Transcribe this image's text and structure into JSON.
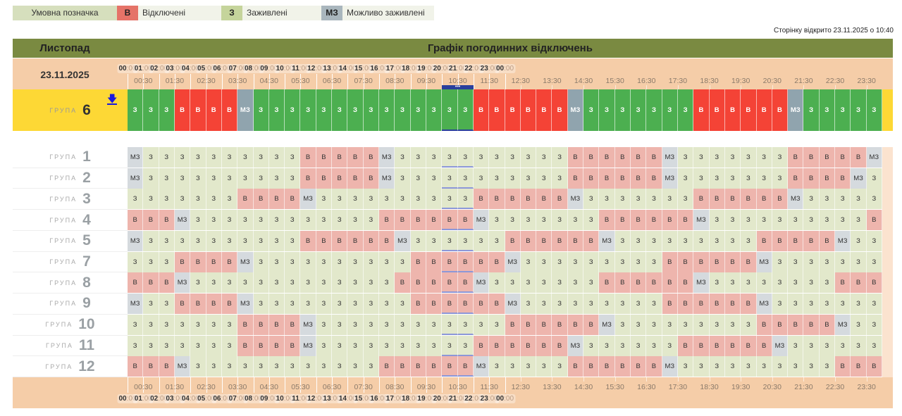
{
  "legend": {
    "title": "Умовна позначка",
    "items": [
      {
        "code": "В",
        "label": "Відключені",
        "color": "#e57368"
      },
      {
        "code": "З",
        "label": "Заживлені",
        "color": "#c5d49b"
      },
      {
        "code": "МЗ",
        "label": "Можливо заживлені",
        "color": "#a9b6bd"
      }
    ]
  },
  "opened_text": "Сторінку відкрито 23.11.2025 о 10:40",
  "header": {
    "month": "Листопад",
    "title": "Графік погодинних відключень",
    "date": "23.11.2025"
  },
  "hours": [
    "00",
    "01",
    "02",
    "03",
    "04",
    "05",
    "06",
    "07",
    "08",
    "09",
    "10",
    "11",
    "12",
    "13",
    "14",
    "15",
    "16",
    "17",
    "18",
    "19",
    "20",
    "21",
    "22",
    "23",
    "00"
  ],
  "minute_suffix": ":00",
  "half_hours": [
    "00:30",
    "01:30",
    "02:30",
    "03:30",
    "04:30",
    "05:30",
    "06:30",
    "07:30",
    "08:30",
    "09:30",
    "10:30",
    "11:30",
    "12:30",
    "13:30",
    "14:30",
    "15:30",
    "16:30",
    "17:30",
    "18:30",
    "19:30",
    "20:30",
    "21:30",
    "22:30",
    "23:30"
  ],
  "current_marker": "•••",
  "current_slot_hour": "10",
  "group_word": "ГРУПА",
  "colors": {
    "active": {
      "З": "#4caf50",
      "В": "#f44336",
      "МЗ": "#90a4ae"
    },
    "inactive": {
      "З": "#e2e8cb",
      "В": "#eeb5ad",
      "МЗ": "#d5dade"
    },
    "accent": "#fdd835",
    "marker": "#2a3f9c"
  },
  "active_group": {
    "number": "6",
    "download_icon": "download-icon",
    "cells": [
      "З",
      "З",
      "З",
      "В",
      "В",
      "В",
      "В",
      "МЗ",
      "З",
      "З",
      "З",
      "З",
      "З",
      "З",
      "З",
      "З",
      "З",
      "З",
      "З",
      "З",
      "З",
      "З",
      "В",
      "В",
      "В",
      "В",
      "В",
      "В",
      "МЗ",
      "З",
      "З",
      "З",
      "З",
      "З",
      "З",
      "З",
      "В",
      "В",
      "В",
      "В",
      "В",
      "В",
      "МЗ",
      "З",
      "З",
      "З",
      "З",
      "З"
    ]
  },
  "groups": [
    {
      "number": "1",
      "cells": [
        "МЗ",
        "З",
        "З",
        "З",
        "З",
        "З",
        "З",
        "З",
        "З",
        "З",
        "З",
        "В",
        "В",
        "В",
        "В",
        "В",
        "МЗ",
        "З",
        "З",
        "З",
        "З",
        "З",
        "З",
        "З",
        "З",
        "З",
        "З",
        "З",
        "В",
        "В",
        "В",
        "В",
        "В",
        "В",
        "МЗ",
        "З",
        "З",
        "З",
        "З",
        "З",
        "З",
        "З",
        "В",
        "В",
        "В",
        "В",
        "В",
        "МЗ"
      ]
    },
    {
      "number": "2",
      "cells": [
        "МЗ",
        "З",
        "З",
        "З",
        "З",
        "З",
        "З",
        "З",
        "З",
        "З",
        "З",
        "В",
        "В",
        "В",
        "В",
        "В",
        "МЗ",
        "З",
        "З",
        "З",
        "З",
        "З",
        "З",
        "З",
        "З",
        "З",
        "З",
        "З",
        "В",
        "В",
        "В",
        "В",
        "В",
        "В",
        "МЗ",
        "З",
        "З",
        "З",
        "З",
        "З",
        "З",
        "З",
        "В",
        "В",
        "В",
        "В",
        "МЗ",
        "З"
      ]
    },
    {
      "number": "3",
      "cells": [
        "З",
        "З",
        "З",
        "З",
        "З",
        "З",
        "З",
        "В",
        "В",
        "В",
        "В",
        "МЗ",
        "З",
        "З",
        "З",
        "З",
        "З",
        "З",
        "З",
        "З",
        "З",
        "З",
        "В",
        "В",
        "В",
        "В",
        "В",
        "В",
        "МЗ",
        "З",
        "З",
        "З",
        "З",
        "З",
        "З",
        "З",
        "В",
        "В",
        "В",
        "В",
        "В",
        "В",
        "МЗ",
        "З",
        "З",
        "З",
        "З",
        "З"
      ]
    },
    {
      "number": "4",
      "cells": [
        "В",
        "В",
        "В",
        "МЗ",
        "З",
        "З",
        "З",
        "З",
        "З",
        "З",
        "З",
        "З",
        "З",
        "З",
        "З",
        "З",
        "В",
        "В",
        "В",
        "В",
        "В",
        "В",
        "МЗ",
        "З",
        "З",
        "З",
        "З",
        "З",
        "З",
        "З",
        "В",
        "В",
        "В",
        "В",
        "В",
        "В",
        "МЗ",
        "З",
        "З",
        "З",
        "З",
        "З",
        "З",
        "З",
        "З",
        "З",
        "З",
        "В"
      ]
    },
    {
      "number": "5",
      "cells": [
        "МЗ",
        "З",
        "З",
        "З",
        "З",
        "З",
        "З",
        "З",
        "З",
        "З",
        "З",
        "В",
        "В",
        "В",
        "В",
        "В",
        "В",
        "МЗ",
        "З",
        "З",
        "З",
        "З",
        "З",
        "З",
        "В",
        "В",
        "В",
        "В",
        "В",
        "В",
        "МЗ",
        "З",
        "З",
        "З",
        "З",
        "З",
        "З",
        "З",
        "З",
        "З",
        "В",
        "В",
        "В",
        "В",
        "В",
        "МЗ",
        "З",
        "З"
      ]
    },
    {
      "number": "7",
      "cells": [
        "З",
        "З",
        "З",
        "В",
        "В",
        "В",
        "В",
        "МЗ",
        "З",
        "З",
        "З",
        "З",
        "З",
        "З",
        "З",
        "З",
        "З",
        "З",
        "В",
        "В",
        "В",
        "В",
        "В",
        "В",
        "МЗ",
        "З",
        "З",
        "З",
        "З",
        "З",
        "З",
        "З",
        "З",
        "З",
        "В",
        "В",
        "В",
        "В",
        "В",
        "В",
        "МЗ",
        "З",
        "З",
        "З",
        "З",
        "З",
        "З",
        "З"
      ]
    },
    {
      "number": "8",
      "cells": [
        "В",
        "В",
        "В",
        "МЗ",
        "З",
        "З",
        "З",
        "З",
        "З",
        "З",
        "З",
        "З",
        "З",
        "З",
        "З",
        "З",
        "З",
        "В",
        "В",
        "В",
        "В",
        "В",
        "МЗ",
        "З",
        "З",
        "З",
        "З",
        "З",
        "З",
        "З",
        "В",
        "В",
        "В",
        "В",
        "В",
        "В",
        "МЗ",
        "З",
        "З",
        "З",
        "З",
        "З",
        "З",
        "З",
        "З",
        "В",
        "В",
        "В"
      ]
    },
    {
      "number": "9",
      "cells": [
        "МЗ",
        "З",
        "З",
        "В",
        "В",
        "В",
        "В",
        "МЗ",
        "З",
        "З",
        "З",
        "З",
        "З",
        "З",
        "З",
        "З",
        "З",
        "З",
        "В",
        "В",
        "В",
        "В",
        "В",
        "В",
        "МЗ",
        "З",
        "З",
        "З",
        "З",
        "З",
        "З",
        "З",
        "З",
        "З",
        "В",
        "В",
        "В",
        "В",
        "В",
        "В",
        "МЗ",
        "З",
        "З",
        "З",
        "З",
        "З",
        "З",
        "З"
      ]
    },
    {
      "number": "10",
      "cells": [
        "З",
        "З",
        "З",
        "З",
        "З",
        "З",
        "З",
        "В",
        "В",
        "В",
        "В",
        "МЗ",
        "З",
        "З",
        "З",
        "З",
        "З",
        "З",
        "З",
        "З",
        "З",
        "З",
        "З",
        "З",
        "В",
        "В",
        "В",
        "В",
        "В",
        "В",
        "МЗ",
        "З",
        "З",
        "З",
        "З",
        "З",
        "З",
        "З",
        "З",
        "З",
        "В",
        "В",
        "В",
        "В",
        "В",
        "МЗ",
        "З",
        "З"
      ]
    },
    {
      "number": "11",
      "cells": [
        "З",
        "З",
        "З",
        "З",
        "З",
        "З",
        "З",
        "В",
        "В",
        "В",
        "В",
        "МЗ",
        "З",
        "З",
        "З",
        "З",
        "З",
        "З",
        "З",
        "З",
        "З",
        "З",
        "В",
        "В",
        "В",
        "В",
        "В",
        "В",
        "МЗ",
        "З",
        "З",
        "З",
        "З",
        "З",
        "З",
        "В",
        "В",
        "В",
        "В",
        "В",
        "В",
        "МЗ",
        "З",
        "З",
        "З",
        "З",
        "З",
        "З"
      ]
    },
    {
      "number": "12",
      "cells": [
        "В",
        "В",
        "В",
        "МЗ",
        "З",
        "З",
        "З",
        "З",
        "З",
        "З",
        "З",
        "З",
        "З",
        "З",
        "З",
        "З",
        "В",
        "В",
        "В",
        "В",
        "В",
        "В",
        "МЗ",
        "З",
        "З",
        "З",
        "З",
        "З",
        "В",
        "В",
        "В",
        "В",
        "В",
        "В",
        "МЗ",
        "З",
        "З",
        "З",
        "З",
        "З",
        "З",
        "З",
        "З",
        "З",
        "З",
        "В",
        "В",
        "В"
      ]
    }
  ]
}
